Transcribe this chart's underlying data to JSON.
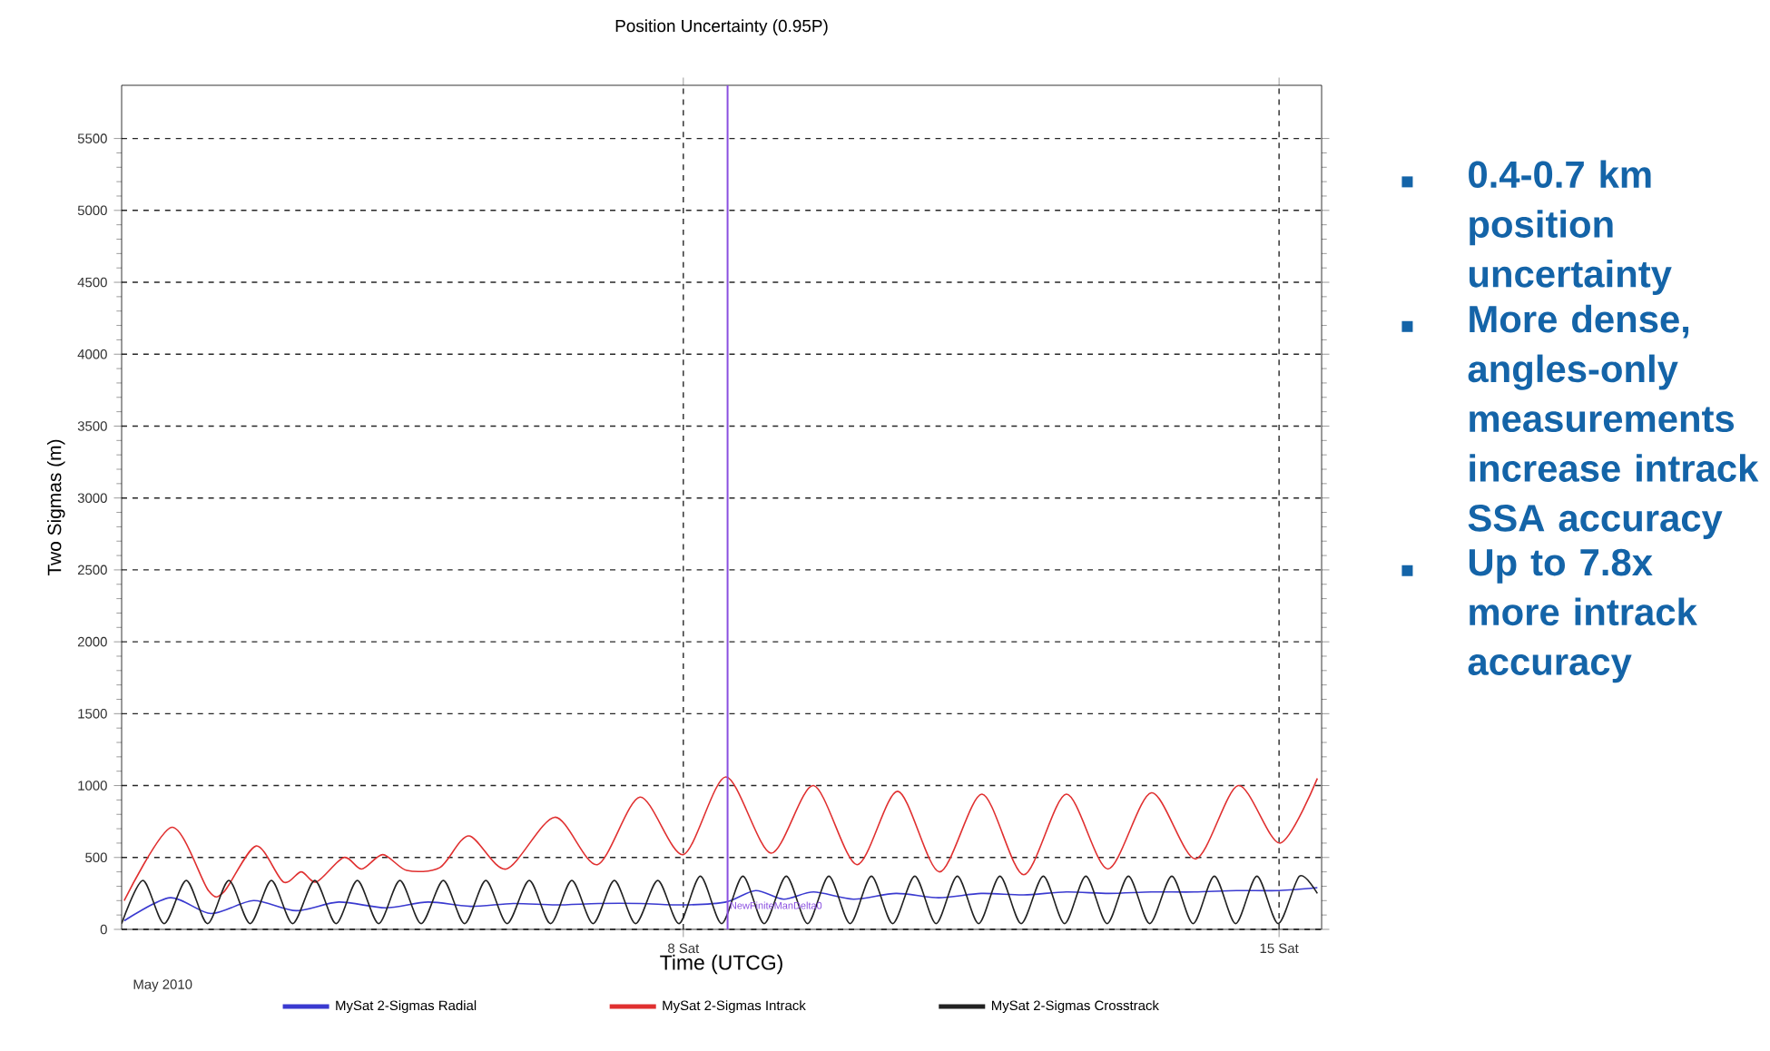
{
  "chart_data": {
    "type": "line",
    "title": "Position Uncertainty (0.95P)",
    "xlabel": "Time (UTCG)",
    "ylabel": "Two Sigmas (m)",
    "xlim": [
      1.4,
      15.5
    ],
    "ylim": [
      0,
      5870
    ],
    "xticks": [
      {
        "value": 8,
        "label": "8 Sat"
      },
      {
        "value": 15,
        "label": "15 Sat"
      }
    ],
    "yticks": [
      0,
      500,
      1000,
      1500,
      2000,
      2500,
      3000,
      3500,
      4000,
      4500,
      5000,
      5500
    ],
    "grid": true,
    "legend": "bottom",
    "series": [
      {
        "name": "MySat 2-Sigmas Radial",
        "color": "#3a3ad0",
        "x": [
          1.43,
          1.97,
          2.45,
          2.95,
          3.45,
          3.95,
          4.5,
          5.0,
          5.5,
          6.0,
          6.5,
          7.0,
          7.5,
          8.0,
          8.5,
          8.85,
          9.18,
          9.53,
          10.0,
          10.5,
          11.0,
          11.5,
          12.0,
          12.5,
          13.0,
          13.5,
          14.0,
          14.5,
          15.0,
          15.45
        ],
        "values": [
          60,
          220,
          110,
          200,
          130,
          190,
          150,
          190,
          160,
          180,
          170,
          180,
          180,
          170,
          190,
          270,
          210,
          260,
          210,
          250,
          220,
          250,
          240,
          260,
          250,
          260,
          260,
          270,
          270,
          290
        ]
      },
      {
        "name": "MySat 2-Sigmas Intrack",
        "color": "#e03030",
        "x": [
          1.43,
          1.99,
          2.42,
          2.6,
          2.98,
          3.3,
          3.51,
          3.69,
          4.01,
          4.22,
          4.47,
          4.75,
          5.14,
          5.48,
          5.92,
          6.49,
          6.99,
          7.49,
          8.0,
          8.5,
          9.03,
          9.53,
          10.04,
          10.52,
          11.01,
          11.51,
          12.0,
          12.5,
          12.99,
          13.5,
          14.02,
          14.52,
          15.01,
          15.45
        ],
        "values": [
          200,
          710,
          270,
          260,
          580,
          330,
          400,
          330,
          500,
          420,
          520,
          410,
          430,
          650,
          420,
          780,
          450,
          920,
          520,
          1060,
          530,
          1000,
          450,
          960,
          400,
          940,
          380,
          940,
          420,
          950,
          490,
          1000,
          600,
          1050
        ]
      },
      {
        "name": "MySat 2-Sigmas Crosstrack",
        "color": "#222222",
        "x": [
          1.4,
          1.65,
          1.9,
          2.16,
          2.41,
          2.66,
          2.91,
          3.16,
          3.41,
          3.67,
          3.92,
          4.17,
          4.42,
          4.67,
          4.92,
          5.18,
          5.43,
          5.68,
          5.93,
          6.19,
          6.44,
          6.69,
          6.94,
          7.19,
          7.44,
          7.7,
          7.95,
          8.2,
          8.45,
          8.7,
          8.95,
          9.21,
          9.46,
          9.71,
          9.96,
          10.21,
          10.46,
          10.72,
          10.97,
          11.22,
          11.47,
          11.72,
          11.97,
          12.23,
          12.48,
          12.73,
          12.98,
          13.23,
          13.48,
          13.74,
          13.99,
          14.24,
          14.49,
          14.74,
          14.99,
          15.24,
          15.45
        ],
        "values": [
          40,
          340,
          40,
          340,
          40,
          340,
          40,
          340,
          40,
          340,
          40,
          340,
          40,
          340,
          40,
          340,
          40,
          340,
          40,
          340,
          40,
          340,
          40,
          340,
          40,
          340,
          40,
          370,
          40,
          370,
          40,
          370,
          40,
          370,
          40,
          370,
          40,
          370,
          40,
          370,
          40,
          370,
          40,
          370,
          40,
          370,
          40,
          370,
          40,
          370,
          40,
          370,
          40,
          370,
          40,
          370,
          250
        ]
      }
    ],
    "ref_lines": [
      {
        "axis": "x",
        "value": 8.52,
        "label": "NewFiniteManDelta0",
        "color": "#8a4fe0"
      }
    ],
    "annotations": [
      "May 2010",
      "0.4-0.7 km position uncertainty",
      "More dense, angles-only measurements increase intrack SSA accuracy",
      "Up to 7.8x more intrack accuracy"
    ]
  }
}
